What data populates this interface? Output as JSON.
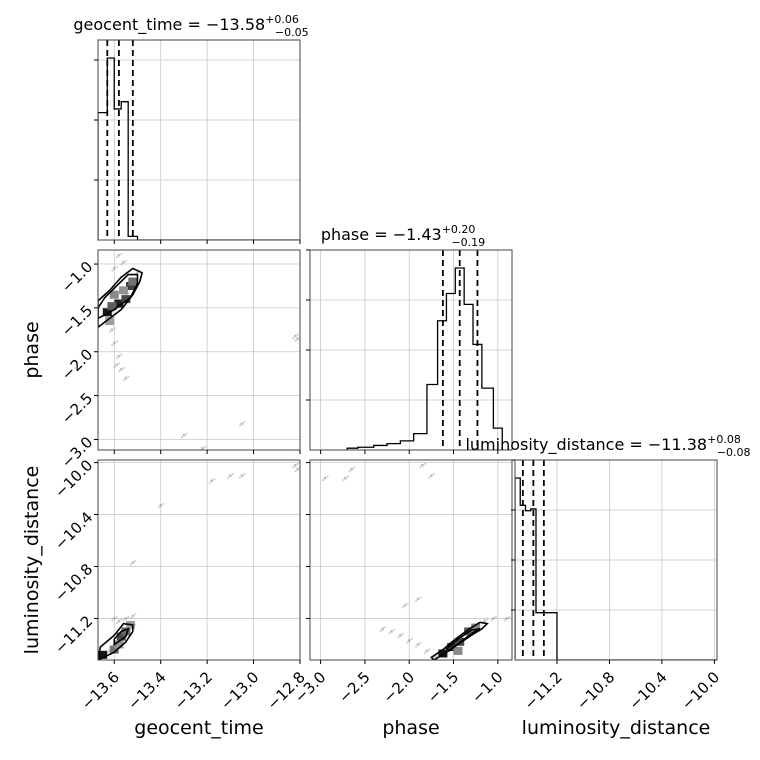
{
  "chart_data": {
    "type": "corner",
    "parameters": [
      "geocent_time",
      "phase",
      "luminosity_distance"
    ],
    "axis_ranges": {
      "geocent_time": [
        -13.67,
        -12.8
      ],
      "phase": [
        -3.12,
        -0.84
      ],
      "luminosity_distance": [
        -11.52,
        -9.98
      ]
    },
    "ticks": {
      "geocent_time": {
        "values": [
          -13.6,
          -13.4,
          -13.2,
          -13.0,
          -12.8
        ],
        "labels": [
          "−13.6",
          "−13.4",
          "−13.2",
          "−13.0",
          "−12.8"
        ]
      },
      "phase": {
        "values": [
          -3.0,
          -2.5,
          -2.0,
          -1.5,
          -1.0
        ],
        "labels": [
          "−3.0",
          "−2.5",
          "−2.0",
          "−1.5",
          "−1.0"
        ]
      },
      "phase_y": {
        "values": [
          -1.0,
          -1.5,
          -2.0,
          -2.5,
          -3.0
        ],
        "labels": [
          "−1.0",
          "−1.5",
          "−2.0",
          "−2.5",
          "−3.0"
        ]
      },
      "luminosity_distance": {
        "values": [
          -11.2,
          -10.8,
          -10.4,
          -10.0
        ],
        "labels": [
          "−11.2",
          "−10.8",
          "−10.4",
          "−10.0"
        ]
      },
      "luminosity_distance_y": {
        "values": [
          -10.0,
          -10.4,
          -10.8,
          -11.2
        ],
        "labels": [
          "−10.0",
          "−10.4",
          "−10.8",
          "−11.2"
        ]
      }
    },
    "titles": [
      {
        "param": "geocent_time",
        "label": "geocent_time = −13.58",
        "plus": "+0.06",
        "minus": "−0.05"
      },
      {
        "param": "phase",
        "label": "phase = −1.43",
        "plus": "+0.20",
        "minus": "−0.19"
      },
      {
        "param": "luminosity_distance",
        "label": "luminosity_distance = −11.38",
        "plus": "+0.08",
        "minus": "−0.08"
      }
    ],
    "quantiles": {
      "geocent_time": [
        -13.63,
        -13.58,
        -13.52
      ],
      "phase": [
        -1.62,
        -1.43,
        -1.23
      ],
      "luminosity_distance": [
        -11.46,
        -11.38,
        -11.3
      ]
    },
    "histograms": {
      "geocent_time": {
        "edges": [
          -13.67,
          -13.63,
          -13.6,
          -13.57,
          -13.54,
          -13.5,
          -13.46,
          -12.8
        ],
        "counts": [
          0.7,
          1.0,
          0.72,
          0.76,
          0.02,
          0.0,
          0.0
        ]
      },
      "phase": {
        "edges": [
          -2.7,
          -2.58,
          -2.4,
          -2.25,
          -2.1,
          -1.95,
          -1.8,
          -1.68,
          -1.58,
          -1.48,
          -1.38,
          -1.28,
          -1.18,
          -1.05,
          -0.95
        ],
        "counts": [
          0.01,
          0.015,
          0.025,
          0.035,
          0.05,
          0.09,
          0.36,
          0.71,
          0.86,
          1.0,
          0.8,
          0.58,
          0.34,
          0.12
        ]
      },
      "luminosity_distance": {
        "edges": [
          -11.52,
          -11.48,
          -11.44,
          -11.4,
          -11.36,
          -11.31,
          -11.2,
          -9.98
        ],
        "counts": [
          1.0,
          0.85,
          0.82,
          0.83,
          0.26,
          0.26,
          0.0
        ]
      }
    },
    "scatter": {
      "time_phase": [
        [
          -13.62,
          -1.58
        ],
        [
          -13.6,
          -1.5
        ],
        [
          -13.58,
          -1.45
        ],
        [
          -13.55,
          -1.35
        ],
        [
          -13.53,
          -1.25
        ],
        [
          -13.52,
          -1.18
        ],
        [
          -13.5,
          -1.1
        ],
        [
          -13.56,
          -0.98
        ],
        [
          -13.58,
          -0.9
        ],
        [
          -13.6,
          -1.05
        ],
        [
          -13.61,
          -1.75
        ],
        [
          -13.6,
          -1.9
        ],
        [
          -13.58,
          -2.05
        ],
        [
          -13.57,
          -2.2
        ],
        [
          -13.55,
          -2.3
        ],
        [
          -13.59,
          -2.15
        ],
        [
          -12.82,
          -1.82
        ],
        [
          -12.81,
          -1.85
        ],
        [
          -13.3,
          -2.95
        ],
        [
          -13.22,
          -3.1
        ],
        [
          -13.05,
          -2.82
        ]
      ],
      "time_lumdist": [
        [
          -13.65,
          -11.5
        ],
        [
          -13.62,
          -11.45
        ],
        [
          -13.6,
          -11.4
        ],
        [
          -13.57,
          -11.33
        ],
        [
          -13.55,
          -11.3
        ],
        [
          -13.58,
          -11.22
        ],
        [
          -13.55,
          -11.2
        ],
        [
          -13.52,
          -11.18
        ],
        [
          -13.6,
          -11.2
        ],
        [
          -13.52,
          -11.26
        ],
        [
          -13.52,
          -10.77
        ],
        [
          -13.4,
          -10.33
        ],
        [
          -13.18,
          -10.14
        ],
        [
          -13.1,
          -10.1
        ],
        [
          -13.05,
          -10.1
        ],
        [
          -12.82,
          -10.02
        ],
        [
          -12.81,
          -10.05
        ]
      ],
      "phase_lumdist": [
        [
          -1.7,
          -11.5
        ],
        [
          -1.62,
          -11.47
        ],
        [
          -1.55,
          -11.43
        ],
        [
          -1.5,
          -11.38
        ],
        [
          -1.43,
          -11.35
        ],
        [
          -1.35,
          -11.3
        ],
        [
          -1.25,
          -11.25
        ],
        [
          -1.15,
          -11.22
        ],
        [
          -1.05,
          -11.2
        ],
        [
          -0.9,
          -11.2
        ],
        [
          -1.8,
          -11.45
        ],
        [
          -1.9,
          -11.4
        ],
        [
          -2.0,
          -11.37
        ],
        [
          -2.1,
          -11.33
        ],
        [
          -2.2,
          -11.3
        ],
        [
          -2.3,
          -11.28
        ],
        [
          -2.05,
          -11.1
        ],
        [
          -1.9,
          -11.05
        ],
        [
          -1.85,
          -10.02
        ],
        [
          -1.75,
          -10.1
        ],
        [
          -2.65,
          -10.05
        ],
        [
          -2.72,
          -10.12
        ],
        [
          -2.95,
          -10.12
        ]
      ]
    },
    "density_cells": {
      "time_phase": [
        [
          -13.63,
          -1.55,
          0.95
        ],
        [
          -13.58,
          -1.45,
          0.9
        ],
        [
          -13.55,
          -1.4,
          0.7
        ],
        [
          -13.61,
          -1.48,
          0.6
        ],
        [
          -13.53,
          -1.25,
          0.75
        ],
        [
          -13.52,
          -1.2,
          0.5
        ],
        [
          -13.6,
          -1.35,
          0.4
        ],
        [
          -13.56,
          -1.3,
          0.35
        ],
        [
          -13.62,
          -1.65,
          0.3
        ]
      ],
      "time_lumdist": [
        [
          -13.65,
          -11.48,
          0.95
        ],
        [
          -13.6,
          -11.44,
          0.5
        ],
        [
          -13.57,
          -11.34,
          0.7
        ],
        [
          -13.55,
          -11.3,
          0.55
        ],
        [
          -13.53,
          -11.25,
          0.3
        ],
        [
          -13.58,
          -11.4,
          0.35
        ]
      ],
      "phase_lumdist": [
        [
          -1.62,
          -11.47,
          0.95
        ],
        [
          -1.52,
          -11.42,
          0.85
        ],
        [
          -1.43,
          -11.38,
          0.7
        ],
        [
          -1.33,
          -11.3,
          0.6
        ],
        [
          -1.45,
          -11.45,
          0.4
        ],
        [
          -1.25,
          -11.27,
          0.4
        ]
      ]
    },
    "contours": {
      "time_phase": [
        [
          [
            -13.67,
            -1.72
          ],
          [
            -13.62,
            -1.62
          ],
          [
            -13.57,
            -1.52
          ],
          [
            -13.52,
            -1.35
          ],
          [
            -13.49,
            -1.2
          ],
          [
            -13.48,
            -1.1
          ],
          [
            -13.52,
            -1.05
          ],
          [
            -13.57,
            -1.15
          ],
          [
            -13.62,
            -1.3
          ],
          [
            -13.67,
            -1.42
          ]
        ],
        [
          [
            -13.67,
            -1.62
          ],
          [
            -13.6,
            -1.52
          ],
          [
            -13.53,
            -1.38
          ],
          [
            -13.5,
            -1.22
          ],
          [
            -13.5,
            -1.12
          ],
          [
            -13.54,
            -1.12
          ],
          [
            -13.59,
            -1.25
          ],
          [
            -13.64,
            -1.38
          ],
          [
            -13.67,
            -1.5
          ]
        ]
      ],
      "time_lumdist": [
        [
          [
            -13.67,
            -11.52
          ],
          [
            -13.6,
            -11.46
          ],
          [
            -13.55,
            -11.38
          ],
          [
            -13.52,
            -11.3
          ],
          [
            -13.52,
            -11.25
          ],
          [
            -13.56,
            -11.24
          ],
          [
            -13.6,
            -11.33
          ],
          [
            -13.66,
            -11.42
          ]
        ],
        [
          [
            -13.6,
            -11.4
          ],
          [
            -13.55,
            -11.34
          ],
          [
            -13.54,
            -11.28
          ],
          [
            -13.57,
            -11.3
          ],
          [
            -13.6,
            -11.36
          ]
        ]
      ],
      "phase_lumdist": [
        [
          [
            -1.72,
            -11.52
          ],
          [
            -1.6,
            -11.47
          ],
          [
            -1.45,
            -11.4
          ],
          [
            -1.3,
            -11.33
          ],
          [
            -1.18,
            -11.28
          ],
          [
            -1.12,
            -11.24
          ],
          [
            -1.2,
            -11.23
          ],
          [
            -1.32,
            -11.28
          ],
          [
            -1.48,
            -11.36
          ],
          [
            -1.62,
            -11.44
          ],
          [
            -1.75,
            -11.5
          ]
        ],
        [
          [
            -1.55,
            -11.45
          ],
          [
            -1.42,
            -11.38
          ],
          [
            -1.28,
            -11.31
          ],
          [
            -1.2,
            -11.28
          ],
          [
            -1.3,
            -11.29
          ],
          [
            -1.45,
            -11.36
          ],
          [
            -1.58,
            -11.43
          ]
        ]
      ]
    },
    "xlabels": [
      "geocent_time",
      "phase",
      "luminosity_distance"
    ],
    "ylabels": [
      "phase",
      "luminosity_distance"
    ],
    "grid": true
  }
}
